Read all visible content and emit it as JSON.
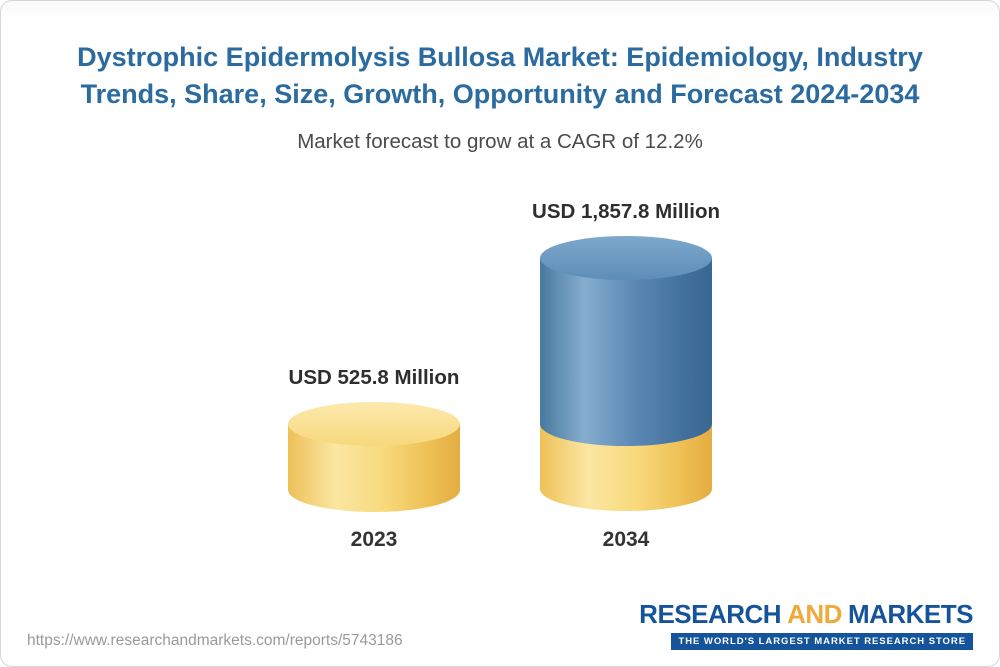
{
  "header": {
    "title": "Dystrophic Epidermolysis Bullosa Market: Epidemiology, Industry Trends, Share, Size, Growth, Opportunity and Forecast 2024-2034",
    "subtitle": "Market forecast to grow at a CAGR of 12.2%"
  },
  "chart_data": {
    "type": "bar",
    "style": "3d-cylinder",
    "categories": [
      "2023",
      "2034"
    ],
    "values": [
      525.8,
      1857.8
    ],
    "unit": "USD Million",
    "value_labels": [
      "USD 525.8 Million",
      "USD 1,857.8 Million"
    ],
    "cagr_percent": 12.2,
    "title": "Dystrophic Epidermolysis Bullosa Market: Epidemiology, Industry Trends, Share, Size, Growth, Opportunity and Forecast 2024-2034",
    "subtitle": "Market forecast to grow at a CAGR of 12.2%",
    "xlabel": "",
    "ylabel": "",
    "ylim": [
      0,
      1857.8
    ],
    "grid": false,
    "legend": "none",
    "colors": {
      "bar_2023": "#F6D26E",
      "bar_2034_top_segment": "#4A7FAE",
      "bar_2034_base_segment": "#F6D26E",
      "title_text": "#2B6B9F"
    }
  },
  "footer": {
    "url": "https://www.researchandmarkets.com/reports/5743186",
    "logo": {
      "research": "RESEARCH",
      "and": "AND",
      "markets": "MARKETS",
      "tagline": "THE WORLD'S LARGEST MARKET RESEARCH STORE",
      "colors": {
        "blue": "#15549A",
        "orange": "#F0A93B"
      }
    }
  }
}
